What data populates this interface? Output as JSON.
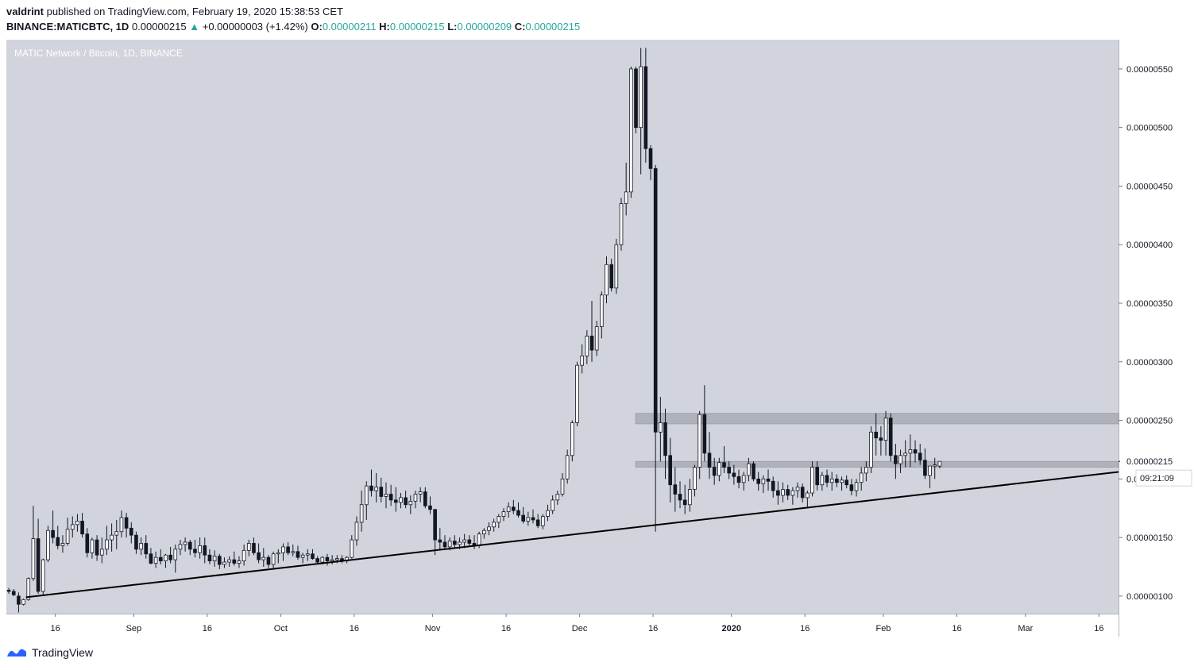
{
  "header": {
    "author": "valdrint",
    "published_text": "published on TradingView.com, February 19, 2020 15:38:53 CET",
    "symbol": "BINANCE:MATICBTC, 1D",
    "last_price": "0.00000215",
    "change": "+0.00000003 (+1.42%)",
    "o_label": "O:",
    "o_value": "0.00000211",
    "h_label": "H:",
    "h_value": "0.00000215",
    "l_label": "L:",
    "l_value": "0.00000209",
    "c_label": "C:",
    "c_value": "0.00000215"
  },
  "chart_label": "MATIC Network / Bitcoin, 1D, BINANCE",
  "footer": {
    "brand": "TradingView"
  },
  "colors": {
    "panel_bg": "#d1d4dc",
    "bull": "#ffffff",
    "bear": "#131722",
    "accent_up": "#26a69a",
    "zone": "#a9acb4",
    "trendline": "#000000"
  },
  "chart_data": {
    "type": "candlestick",
    "title": "MATIC Network / Bitcoin, 1D, BINANCE",
    "ylim": [
      8.5e-07,
      5.75e-06
    ],
    "y_ticks": [
      "0.00000550",
      "0.00000500",
      "0.00000450",
      "0.00000400",
      "0.00000350",
      "0.00000300",
      "0.00000250",
      "0.00000200",
      "0.00000150",
      "0.00000100"
    ],
    "x_start_date": "2019-08-06",
    "x_end_date": "2020-03-20",
    "x_ticks": [
      {
        "date": "2019-08-16",
        "label": "16"
      },
      {
        "date": "2019-09-01",
        "label": "Sep"
      },
      {
        "date": "2019-09-16",
        "label": "16"
      },
      {
        "date": "2019-10-01",
        "label": "Oct"
      },
      {
        "date": "2019-10-16",
        "label": "16"
      },
      {
        "date": "2019-11-01",
        "label": "Nov"
      },
      {
        "date": "2019-11-16",
        "label": "16"
      },
      {
        "date": "2019-12-01",
        "label": "Dec"
      },
      {
        "date": "2019-12-16",
        "label": "16"
      },
      {
        "date": "2020-01-01",
        "label": "2020"
      },
      {
        "date": "2020-01-16",
        "label": "16"
      },
      {
        "date": "2020-02-01",
        "label": "Feb"
      },
      {
        "date": "2020-02-16",
        "label": "16"
      },
      {
        "date": "2020-03-01",
        "label": "Mar"
      },
      {
        "date": "2020-03-16",
        "label": "16"
      }
    ],
    "last_price_label": "0.00000215",
    "countdown_label": "09:21:09",
    "resistance_zones": [
      {
        "low": 2.47e-06,
        "high": 2.56e-06
      },
      {
        "low": 2.1e-06,
        "high": 2.15e-06
      }
    ],
    "trendline": {
      "start": {
        "date": "2019-08-10",
        "value": 9.9e-07
      },
      "end": {
        "date": "2020-03-20",
        "value": 2.06e-06
      }
    },
    "first_date": "2019-08-06",
    "candles_ohlc_x1e8": [
      [
        105,
        107,
        102,
        104
      ],
      [
        104,
        106,
        100,
        101
      ],
      [
        100,
        103,
        86,
        93
      ],
      [
        93,
        98,
        92,
        97
      ],
      [
        97,
        116,
        96,
        115
      ],
      [
        115,
        177,
        113,
        149
      ],
      [
        149,
        166,
        102,
        104
      ],
      [
        104,
        132,
        100,
        131
      ],
      [
        131,
        160,
        129,
        156
      ],
      [
        156,
        173,
        145,
        150
      ],
      [
        150,
        160,
        140,
        143
      ],
      [
        143,
        152,
        137,
        145
      ],
      [
        145,
        167,
        143,
        157
      ],
      [
        157,
        168,
        150,
        161
      ],
      [
        161,
        170,
        155,
        164
      ],
      [
        164,
        171,
        150,
        153
      ],
      [
        153,
        158,
        133,
        137
      ],
      [
        137,
        150,
        132,
        148
      ],
      [
        148,
        152,
        130,
        135
      ],
      [
        135,
        150,
        128,
        140
      ],
      [
        140,
        160,
        135,
        148
      ],
      [
        148,
        162,
        138,
        152
      ],
      [
        152,
        165,
        140,
        155
      ],
      [
        155,
        173,
        150,
        167
      ],
      [
        167,
        171,
        150,
        158
      ],
      [
        158,
        163,
        145,
        152
      ],
      [
        152,
        155,
        136,
        140
      ],
      [
        140,
        150,
        135,
        145
      ],
      [
        145,
        152,
        132,
        136
      ],
      [
        136,
        141,
        127,
        128
      ],
      [
        128,
        138,
        124,
        133
      ],
      [
        133,
        140,
        127,
        130
      ],
      [
        130,
        136,
        124,
        135
      ],
      [
        135,
        142,
        128,
        131
      ],
      [
        131,
        144,
        120,
        140
      ],
      [
        140,
        148,
        135,
        144
      ],
      [
        144,
        150,
        138,
        146
      ],
      [
        146,
        148,
        135,
        140
      ],
      [
        140,
        148,
        133,
        137
      ],
      [
        137,
        150,
        132,
        143
      ],
      [
        143,
        150,
        128,
        135
      ],
      [
        135,
        140,
        127,
        130
      ],
      [
        130,
        139,
        125,
        134
      ],
      [
        134,
        136,
        123,
        127
      ],
      [
        127,
        133,
        124,
        129
      ],
      [
        129,
        134,
        125,
        131
      ],
      [
        131,
        138,
        126,
        128
      ],
      [
        128,
        134,
        124,
        130
      ],
      [
        130,
        144,
        126,
        139
      ],
      [
        139,
        148,
        134,
        145
      ],
      [
        145,
        150,
        135,
        137
      ],
      [
        137,
        145,
        128,
        131
      ],
      [
        131,
        141,
        125,
        133
      ],
      [
        133,
        135,
        124,
        127
      ],
      [
        127,
        138,
        124,
        136
      ],
      [
        136,
        140,
        128,
        137
      ],
      [
        137,
        145,
        130,
        142
      ],
      [
        142,
        146,
        135,
        137
      ],
      [
        137,
        144,
        134,
        138
      ],
      [
        138,
        143,
        131,
        133
      ],
      [
        133,
        137,
        128,
        135
      ],
      [
        135,
        140,
        130,
        136
      ],
      [
        136,
        140,
        131,
        132
      ],
      [
        132,
        134,
        128,
        129
      ],
      [
        129,
        134,
        127,
        133
      ],
      [
        133,
        136,
        126,
        130
      ],
      [
        130,
        135,
        127,
        131
      ],
      [
        131,
        135,
        128,
        132
      ],
      [
        132,
        135,
        128,
        130
      ],
      [
        130,
        134,
        128,
        133
      ],
      [
        133,
        152,
        132,
        148
      ],
      [
        148,
        168,
        143,
        163
      ],
      [
        163,
        190,
        155,
        178
      ],
      [
        178,
        198,
        165,
        194
      ],
      [
        194,
        208,
        185,
        190
      ],
      [
        190,
        205,
        180,
        193
      ],
      [
        193,
        201,
        180,
        185
      ],
      [
        185,
        197,
        175,
        187
      ],
      [
        187,
        195,
        177,
        182
      ],
      [
        182,
        193,
        172,
        180
      ],
      [
        180,
        188,
        175,
        184
      ],
      [
        184,
        190,
        175,
        178
      ],
      [
        178,
        186,
        170,
        181
      ],
      [
        181,
        190,
        175,
        187
      ],
      [
        187,
        193,
        180,
        189
      ],
      [
        189,
        193,
        175,
        177
      ],
      [
        177,
        185,
        170,
        174
      ],
      [
        174,
        165,
        135,
        148
      ],
      [
        148,
        158,
        140,
        146
      ],
      [
        146,
        152,
        140,
        142
      ],
      [
        142,
        150,
        139,
        147
      ],
      [
        147,
        152,
        141,
        144
      ],
      [
        144,
        150,
        140,
        146
      ],
      [
        146,
        153,
        141,
        148
      ],
      [
        148,
        152,
        142,
        145
      ],
      [
        145,
        152,
        140,
        143
      ],
      [
        143,
        155,
        141,
        153
      ],
      [
        153,
        158,
        149,
        156
      ],
      [
        156,
        163,
        152,
        159
      ],
      [
        159,
        166,
        155,
        163
      ],
      [
        163,
        170,
        158,
        168
      ],
      [
        168,
        175,
        164,
        172
      ],
      [
        172,
        180,
        167,
        176
      ],
      [
        176,
        182,
        170,
        173
      ],
      [
        173,
        180,
        167,
        169
      ],
      [
        169,
        176,
        162,
        164
      ],
      [
        164,
        172,
        160,
        167
      ],
      [
        167,
        174,
        162,
        165
      ],
      [
        165,
        170,
        158,
        160
      ],
      [
        160,
        170,
        157,
        168
      ],
      [
        168,
        178,
        164,
        173
      ],
      [
        173,
        186,
        170,
        182
      ],
      [
        182,
        190,
        178,
        187
      ],
      [
        187,
        205,
        185,
        200
      ],
      [
        200,
        225,
        196,
        220
      ],
      [
        220,
        250,
        215,
        248
      ],
      [
        248,
        300,
        245,
        297
      ],
      [
        297,
        315,
        290,
        305
      ],
      [
        305,
        327,
        298,
        322
      ],
      [
        322,
        352,
        300,
        310
      ],
      [
        310,
        335,
        305,
        330
      ],
      [
        330,
        360,
        320,
        357
      ],
      [
        357,
        390,
        350,
        383
      ],
      [
        383,
        388,
        360,
        363
      ],
      [
        363,
        405,
        358,
        400
      ],
      [
        400,
        440,
        395,
        435
      ],
      [
        435,
        470,
        425,
        445
      ],
      [
        445,
        552,
        440,
        550
      ],
      [
        550,
        552,
        495,
        500
      ],
      [
        500,
        568,
        460,
        552
      ],
      [
        552,
        568,
        470,
        482
      ],
      [
        482,
        485,
        455,
        465
      ],
      [
        465,
        468,
        155,
        240
      ],
      [
        240,
        270,
        215,
        248
      ],
      [
        248,
        260,
        200,
        220
      ],
      [
        220,
        235,
        180,
        195
      ],
      [
        195,
        210,
        172,
        187
      ],
      [
        187,
        198,
        175,
        182
      ],
      [
        182,
        195,
        170,
        178
      ],
      [
        178,
        200,
        172,
        191
      ],
      [
        191,
        212,
        185,
        210
      ],
      [
        210,
        258,
        200,
        255
      ],
      [
        255,
        280,
        215,
        222
      ],
      [
        222,
        240,
        200,
        210
      ],
      [
        210,
        218,
        195,
        203
      ],
      [
        203,
        218,
        198,
        214
      ],
      [
        214,
        228,
        205,
        210
      ],
      [
        210,
        215,
        200,
        205
      ],
      [
        205,
        212,
        195,
        202
      ],
      [
        202,
        208,
        192,
        197
      ],
      [
        197,
        206,
        190,
        203
      ],
      [
        203,
        218,
        198,
        213
      ],
      [
        213,
        215,
        198,
        200
      ],
      [
        200,
        206,
        190,
        196
      ],
      [
        196,
        203,
        188,
        200
      ],
      [
        200,
        208,
        190,
        198
      ],
      [
        198,
        202,
        184,
        190
      ],
      [
        190,
        198,
        178,
        186
      ],
      [
        186,
        197,
        180,
        191
      ],
      [
        191,
        195,
        182,
        186
      ],
      [
        186,
        193,
        178,
        190
      ],
      [
        190,
        197,
        184,
        193
      ],
      [
        193,
        196,
        180,
        184
      ],
      [
        184,
        190,
        176,
        188
      ],
      [
        188,
        215,
        185,
        210
      ],
      [
        210,
        215,
        190,
        195
      ],
      [
        195,
        206,
        190,
        203
      ],
      [
        203,
        208,
        193,
        197
      ],
      [
        197,
        206,
        190,
        200
      ],
      [
        200,
        204,
        193,
        197
      ],
      [
        197,
        202,
        190,
        199
      ],
      [
        199,
        203,
        192,
        195
      ],
      [
        195,
        200,
        186,
        190
      ],
      [
        190,
        200,
        185,
        197
      ],
      [
        197,
        210,
        190,
        205
      ],
      [
        205,
        215,
        198,
        210
      ],
      [
        210,
        245,
        205,
        240
      ],
      [
        240,
        256,
        220,
        235
      ],
      [
        235,
        245,
        220,
        233
      ],
      [
        233,
        258,
        220,
        252
      ],
      [
        252,
        256,
        215,
        220
      ],
      [
        220,
        230,
        200,
        213
      ],
      [
        213,
        225,
        205,
        220
      ],
      [
        220,
        233,
        210,
        222
      ],
      [
        222,
        238,
        210,
        225
      ],
      [
        225,
        233,
        214,
        222
      ],
      [
        222,
        230,
        212,
        216
      ],
      [
        216,
        226,
        200,
        203
      ],
      [
        203,
        210,
        192,
        211
      ],
      [
        211,
        218,
        200,
        212
      ],
      [
        211,
        215,
        209,
        215
      ]
    ]
  }
}
